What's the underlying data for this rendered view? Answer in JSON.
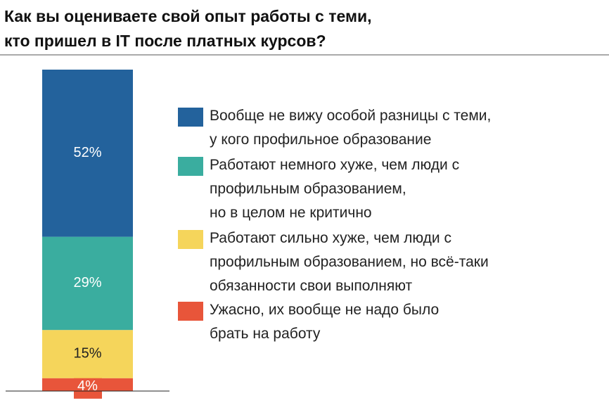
{
  "chart_data": {
    "type": "stacked-bar",
    "title": "Как вы оцениваете свой опыт работы с теми,\nкто пришел в IT после платных курсов?",
    "series": [
      {
        "name": "Вообще не вижу особой разницы с теми,\nу кого профильное образование",
        "color": "#23629c",
        "values": [
          52
        ],
        "value_labels": [
          "52%"
        ]
      },
      {
        "name": "Работают немного хуже, чем люди с\nпрофильным образованием,\nно в целом не критично",
        "color": "#3aad9f",
        "values": [
          29
        ],
        "value_labels": [
          "29%"
        ]
      },
      {
        "name": "Работают сильно хуже, чем люди с\nпрофильным образованием, но всё-таки\nобязанности свои выполняют",
        "color": "#f5d55b",
        "values": [
          15
        ],
        "value_labels": [
          "15%"
        ]
      },
      {
        "name": "Ужасно, их вообще не надо было\nбрать на работу",
        "color": "#e8553a",
        "values": [
          4
        ],
        "value_labels": [
          "4%"
        ]
      }
    ]
  }
}
